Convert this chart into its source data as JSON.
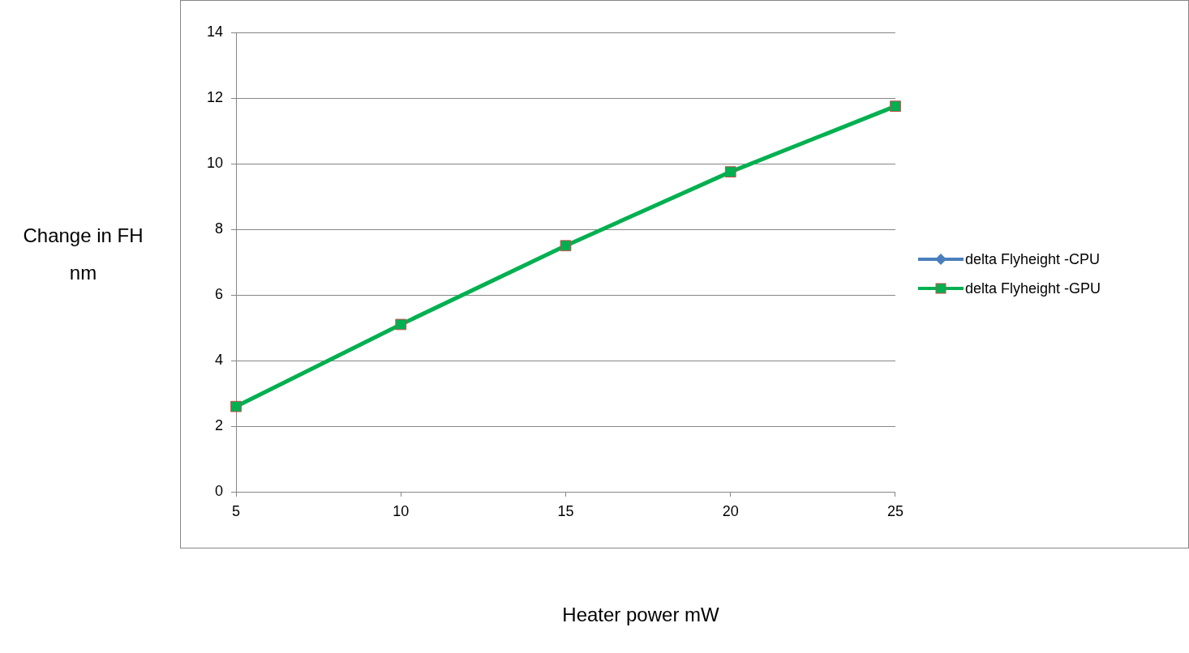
{
  "chart_data": {
    "type": "line",
    "xlabel": "Heater power mW",
    "ylabel": "Change in FH\nnm",
    "x": [
      5,
      10,
      15,
      20,
      25
    ],
    "series": [
      {
        "name": "delta Flyheight -CPU",
        "color": "#4a7ebb",
        "marker": "diamond",
        "values": [
          null,
          null,
          null,
          null,
          null
        ]
      },
      {
        "name": "delta Flyheight -GPU",
        "color": "#00b050",
        "marker": "square",
        "values": [
          2.6,
          5.1,
          7.5,
          9.75,
          11.75
        ]
      }
    ],
    "xlim": [
      5,
      25
    ],
    "xticks": [
      5,
      10,
      15,
      20,
      25
    ],
    "ylim": [
      0,
      14
    ],
    "yticks": [
      0,
      2,
      4,
      6,
      8,
      10,
      12,
      14
    ],
    "grid": "y",
    "legend": "right",
    "line_style": "solid"
  }
}
